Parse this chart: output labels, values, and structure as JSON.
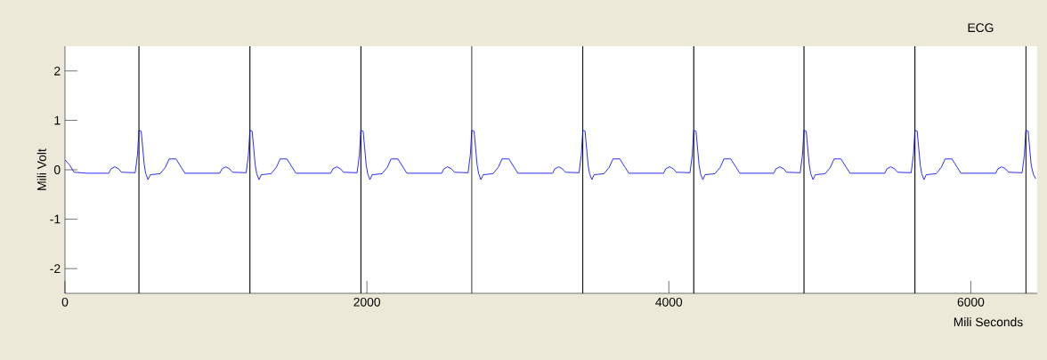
{
  "chart_data": {
    "type": "line",
    "title": "ECG",
    "xlabel": "Mili Seconds",
    "ylabel": "Mili Volt",
    "xlim": [
      0,
      6440
    ],
    "xticks": [
      0,
      2000,
      4000,
      6000
    ],
    "ylim": [
      -2.5,
      2.5
    ],
    "yticks": [
      -2,
      -1,
      0,
      1,
      2
    ],
    "grid": false,
    "marker": "none",
    "line_style": "solid",
    "series": [
      {
        "color": "#0000ff",
        "x": [
          0,
          30,
          60,
          150,
          290,
          305,
          330,
          355,
          375,
          465,
          480,
          490,
          505,
          525,
          535,
          550,
          565,
          630,
          665,
          690,
          735,
          770,
          795,
          1025,
          1040,
          1065,
          1090,
          1110,
          1200,
          1215,
          1225,
          1240,
          1260,
          1270,
          1285,
          1300,
          1365,
          1400,
          1425,
          1470,
          1505,
          1530,
          1760,
          1775,
          1800,
          1825,
          1845,
          1935,
          1950,
          1960,
          1975,
          1995,
          2005,
          2020,
          2035,
          2100,
          2135,
          2160,
          2205,
          2240,
          2265,
          2495,
          2510,
          2535,
          2560,
          2580,
          2670,
          2685,
          2695,
          2710,
          2730,
          2740,
          2755,
          2770,
          2835,
          2870,
          2895,
          2940,
          2975,
          3000,
          3230,
          3245,
          3270,
          3295,
          3315,
          3405,
          3420,
          3430,
          3445,
          3465,
          3475,
          3490,
          3505,
          3570,
          3605,
          3630,
          3675,
          3710,
          3735,
          3965,
          3980,
          4005,
          4030,
          4050,
          4140,
          4155,
          4165,
          4180,
          4200,
          4210,
          4225,
          4240,
          4305,
          4340,
          4365,
          4410,
          4445,
          4470,
          4695,
          4710,
          4735,
          4760,
          4780,
          4870,
          4885,
          4895,
          4910,
          4930,
          4940,
          4955,
          4970,
          5035,
          5070,
          5095,
          5140,
          5175,
          5200,
          5430,
          5445,
          5470,
          5495,
          5515,
          5605,
          5620,
          5630,
          5645,
          5665,
          5675,
          5690,
          5705,
          5770,
          5805,
          5830,
          5875,
          5910,
          5935,
          6165,
          6180,
          6205,
          6230,
          6250,
          6340,
          6355,
          6365,
          6380,
          6400,
          6415,
          6430
        ],
        "values": [
          0.2,
          0.1,
          -0.05,
          -0.07,
          -0.07,
          0.02,
          0.06,
          0.02,
          -0.05,
          -0.06,
          0.3,
          0.8,
          0.78,
          0.1,
          -0.08,
          -0.2,
          -0.1,
          -0.08,
          0.05,
          0.22,
          0.22,
          0.05,
          -0.07,
          -0.07,
          0.02,
          0.06,
          0.02,
          -0.05,
          -0.06,
          0.3,
          0.8,
          0.78,
          0.1,
          -0.08,
          -0.2,
          -0.1,
          -0.08,
          0.05,
          0.22,
          0.22,
          0.05,
          -0.07,
          -0.07,
          0.02,
          0.06,
          0.02,
          -0.05,
          -0.06,
          0.3,
          0.8,
          0.78,
          0.1,
          -0.08,
          -0.2,
          -0.1,
          -0.08,
          0.05,
          0.22,
          0.22,
          0.05,
          -0.07,
          -0.07,
          0.02,
          0.06,
          0.02,
          -0.05,
          -0.06,
          0.3,
          0.8,
          0.78,
          0.1,
          -0.08,
          -0.2,
          -0.1,
          -0.08,
          0.05,
          0.22,
          0.22,
          0.05,
          -0.07,
          -0.07,
          0.02,
          0.06,
          0.02,
          -0.05,
          -0.06,
          0.3,
          0.8,
          0.78,
          0.1,
          -0.08,
          -0.2,
          -0.1,
          -0.08,
          0.05,
          0.22,
          0.22,
          0.05,
          -0.07,
          -0.07,
          0.02,
          0.06,
          0.02,
          -0.05,
          -0.06,
          0.3,
          0.8,
          0.78,
          0.1,
          -0.08,
          -0.2,
          -0.1,
          -0.08,
          0.05,
          0.22,
          0.22,
          0.05,
          -0.07,
          -0.07,
          0.02,
          0.06,
          0.02,
          -0.05,
          -0.06,
          0.3,
          0.8,
          0.78,
          0.1,
          -0.08,
          -0.2,
          -0.1,
          -0.08,
          0.05,
          0.22,
          0.22,
          0.05,
          -0.07,
          -0.07,
          0.02,
          0.06,
          0.02,
          -0.05,
          -0.06,
          0.3,
          0.8,
          0.78,
          0.1,
          -0.08,
          -0.2,
          -0.1,
          -0.08,
          0.05,
          0.22,
          0.22,
          0.05,
          -0.07,
          -0.07,
          0.02,
          0.06,
          0.02,
          -0.05,
          -0.06,
          0.3,
          0.8,
          0.78,
          0.1,
          -0.1,
          -0.18
        ]
      }
    ],
    "ref_lines": [
      {
        "axis": "x",
        "value": 490,
        "color": "#000000"
      },
      {
        "axis": "x",
        "value": 1225,
        "color": "#000000"
      },
      {
        "axis": "x",
        "value": 1960,
        "color": "#000000"
      },
      {
        "axis": "x",
        "value": 2695,
        "color": "#000000"
      },
      {
        "axis": "x",
        "value": 3430,
        "color": "#000000"
      },
      {
        "axis": "x",
        "value": 4165,
        "color": "#000000"
      },
      {
        "axis": "x",
        "value": 4895,
        "color": "#000000"
      },
      {
        "axis": "x",
        "value": 5630,
        "color": "#000000"
      },
      {
        "axis": "x",
        "value": 6365,
        "color": "#000000"
      }
    ]
  }
}
